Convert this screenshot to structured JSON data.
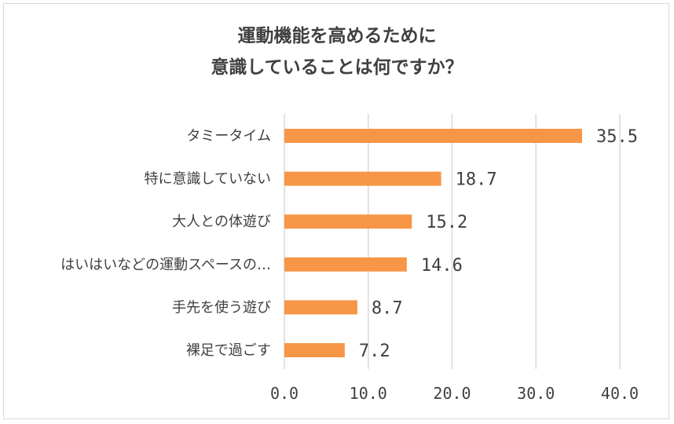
{
  "chart_data": {
    "type": "bar",
    "orientation": "horizontal",
    "title_lines": [
      "運動機能を高めるために",
      "意識していることは何ですか？"
    ],
    "categories": [
      "タミータイム",
      "特に意識していない",
      "大人との体遊び",
      "はいはいなどの運動スペースの…",
      "手先を使う遊び",
      "裸足で過ごす"
    ],
    "values": [
      35.5,
      18.7,
      15.2,
      14.6,
      8.7,
      7.2
    ],
    "value_labels": [
      "35.5",
      "18.7",
      "15.2",
      "14.6",
      "8.7",
      "7.2"
    ],
    "xlim": [
      0,
      40
    ],
    "xticks": [
      "0.0",
      "10.0",
      "20.0",
      "30.0",
      "40.0"
    ],
    "grid": true,
    "legend": "none",
    "colors": {
      "bar": "#f79646",
      "grid": "#d9d9d9",
      "text": "#404040"
    }
  }
}
